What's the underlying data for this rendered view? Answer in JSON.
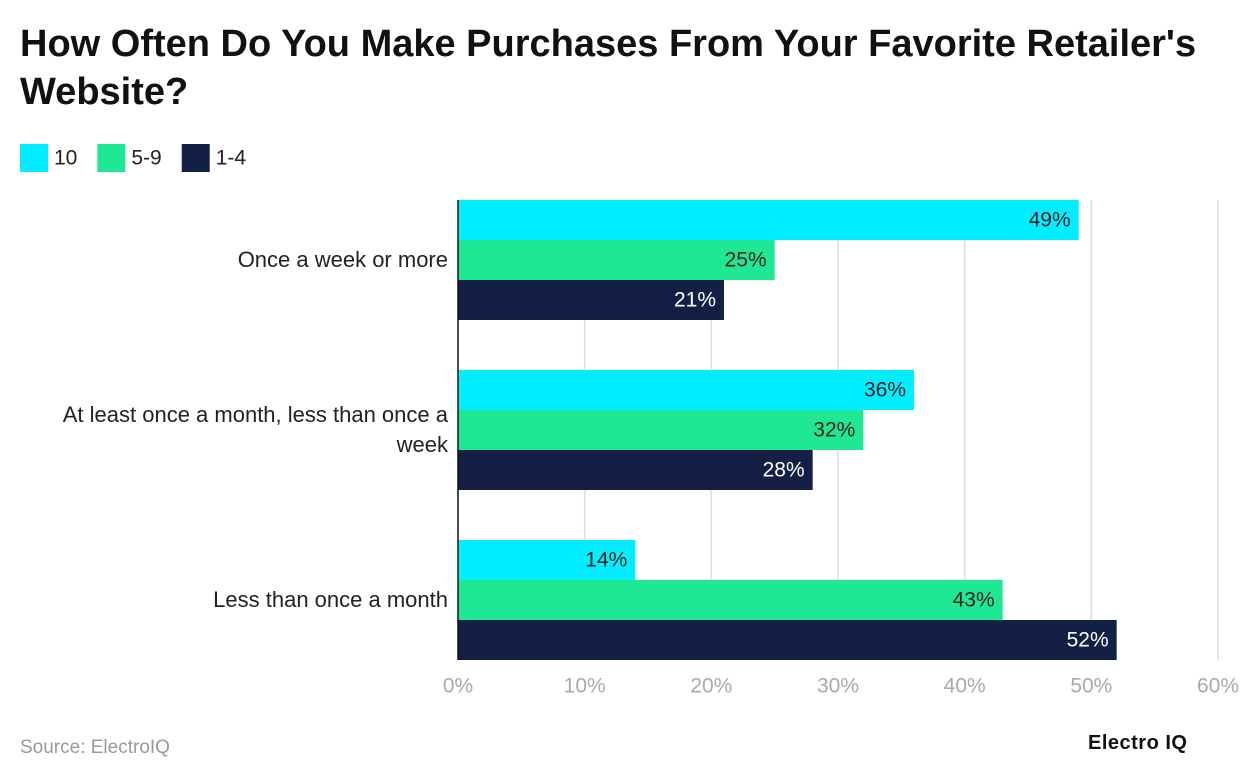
{
  "chart_data": {
    "type": "grouped-horizontal-bar",
    "title": "How Often Do You Make Purchases From Your Favorite Retailer's Website?",
    "categories": [
      "Once a week or more",
      "At least once a month, less than once a week",
      "Less than once a month"
    ],
    "series": [
      {
        "name": "10",
        "color": "#00eeff",
        "values": [
          49,
          36,
          14
        ],
        "value_labels": [
          "49%",
          "36%",
          "14%"
        ]
      },
      {
        "name": "5-9",
        "color": "#1ee893",
        "values": [
          25,
          32,
          43
        ],
        "value_labels": [
          "25%",
          "32%",
          "43%"
        ]
      },
      {
        "name": "1-4",
        "color": "#131f45",
        "values": [
          21,
          28,
          52
        ],
        "value_labels": [
          "21%",
          "28%",
          "52%"
        ]
      }
    ],
    "xlim": [
      0,
      60
    ],
    "xticks": [
      {
        "value": 0,
        "label": "0%"
      },
      {
        "value": 10,
        "label": "10%"
      },
      {
        "value": 20,
        "label": "20%"
      },
      {
        "value": 30,
        "label": "30%"
      },
      {
        "value": 40,
        "label": "40%"
      },
      {
        "value": 50,
        "label": "50%"
      },
      {
        "value": 60,
        "label": "60%"
      }
    ],
    "grid": true,
    "legend": "top-left",
    "source": "Source: ElectroIQ",
    "logo": "Electro IQ"
  }
}
